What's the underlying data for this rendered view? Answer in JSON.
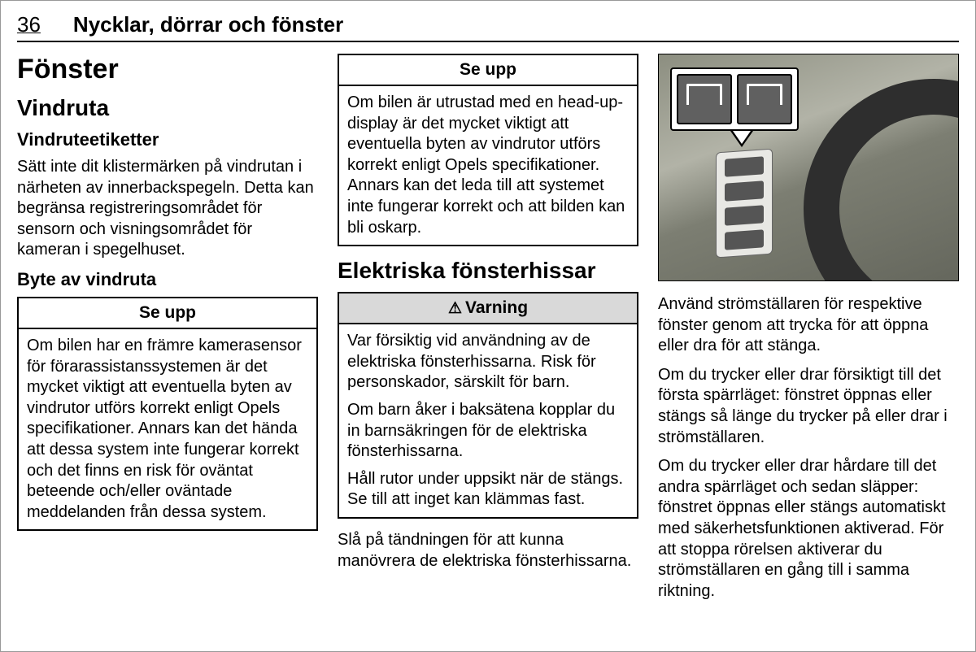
{
  "header": {
    "page_number": "36",
    "title": "Nycklar, dörrar och fönster"
  },
  "col1": {
    "h1": "Fönster",
    "h2": "Vindruta",
    "h3a": "Vindruteetiketter",
    "p1": "Sätt inte dit klistermärken på vindrutan i närheten av innerbackspegeln. Detta kan begränsa registreringsområdet för sensorn och visningsområdet för kameran i spegelhuset.",
    "h3b": "Byte av vindruta",
    "notice1": {
      "header": "Se upp",
      "body": "Om bilen har en främre kamerasensor för förarassistanssystemen är det mycket viktigt att eventuella byten av vindrutor utförs korrekt enligt Opels specifikationer. Annars kan det hända att dessa system inte fungerar korrekt och det finns en risk för oväntat beteende och/eller oväntade meddelanden från dessa system."
    }
  },
  "col2": {
    "notice2": {
      "header": "Se upp",
      "body": "Om bilen är utrustad med en head-up-display är det mycket viktigt att eventuella byten av vindrutor utförs korrekt enligt Opels specifikationer. Annars kan det leda till att systemet inte fungerar korrekt och att bilden kan bli oskarp."
    },
    "h2": "Elektriska fönsterhissar",
    "warning": {
      "header": "Varning",
      "p1": "Var försiktig vid användning av de elektriska fönsterhissarna. Risk för personskador, särskilt för barn.",
      "p2": "Om barn åker i baksätena kopplar du in barnsäkringen för de elektriska fönsterhissarna.",
      "p3": "Håll rutor under uppsikt när de stängs. Se till att inget kan klämmas fast."
    },
    "p_after": "Slå på tändningen för att kunna manövrera de elektriska fönsterhissarna."
  },
  "col3": {
    "p1": "Använd strömställaren för respektive fönster genom att trycka för att öppna eller dra för att stänga.",
    "p2": "Om du trycker eller drar försiktigt till det första spärrläget: fönstret öppnas eller stängs så länge du trycker på eller drar i strömställaren.",
    "p3": "Om du trycker eller drar hårdare till det andra spärrläget och sedan släpper: fönstret öppnas eller stängs automatiskt med säkerhetsfunktionen aktiverad. För att stoppa rörelsen aktiverar du strömställaren en gång till i samma riktning."
  }
}
